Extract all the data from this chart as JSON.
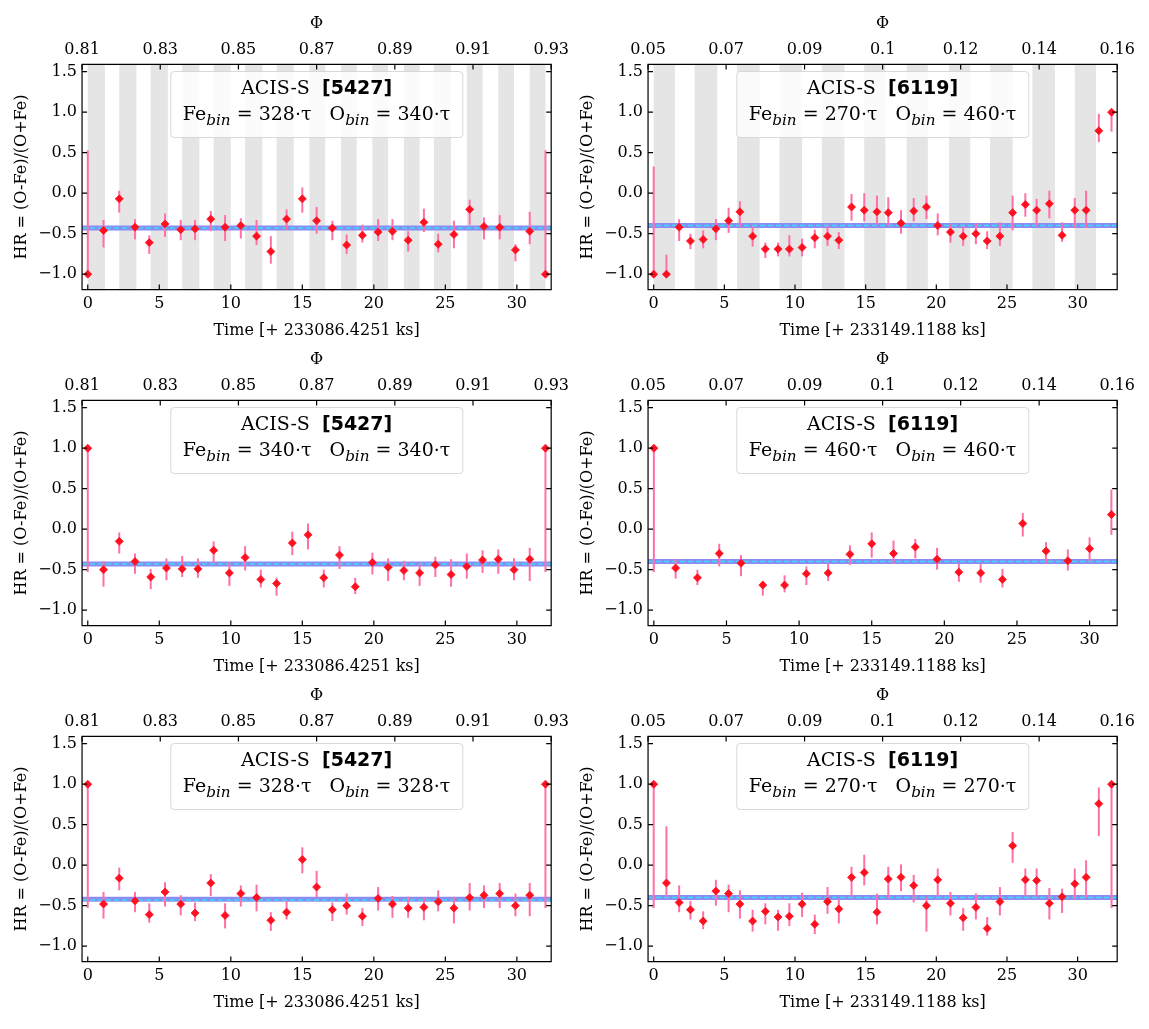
{
  "chart_data": [
    {
      "type": "scatter",
      "xlabel": "Time [+ 233086.4251 ks]",
      "ylabel": "HR = (O-Fe)/(O+Fe)",
      "x2label": "Φ",
      "marker": "diamond",
      "xlim": [
        -0.4,
        32.4
      ],
      "xticks": [
        0,
        5,
        10,
        15,
        20,
        25,
        30
      ],
      "ylim": [
        -1.19,
        1.59
      ],
      "yticks": [
        {
          "value": -1,
          "label": "−1.0"
        },
        {
          "value": -0.5,
          "label": "−0.5"
        },
        {
          "value": 0,
          "label": "0.0"
        },
        {
          "value": 0.5,
          "label": "0.5"
        },
        {
          "value": 1,
          "label": "1.0"
        },
        {
          "value": 1.5,
          "label": "1.5"
        }
      ],
      "x2lim": [
        0.81,
        0.93
      ],
      "x2ticks": [
        0.81,
        0.83,
        0.85,
        0.87,
        0.89,
        0.91,
        0.93
      ],
      "annotations": [
        "ACIS-S  [5427]",
        "Fe$_{bin}$ = 328·τ   O$_{bin}$ = 340·τ"
      ],
      "bands": [
        {
          "axis": "x",
          "from": 0,
          "to": 1.2,
          "color": "#e5e5e5"
        },
        {
          "axis": "x",
          "from": 2.2,
          "to": 3.4,
          "color": "#e5e5e5"
        },
        {
          "axis": "x",
          "from": 4.4,
          "to": 5.6,
          "color": "#e5e5e5"
        },
        {
          "axis": "x",
          "from": 6.6,
          "to": 7.8,
          "color": "#e5e5e5"
        },
        {
          "axis": "x",
          "from": 8.8,
          "to": 10,
          "color": "#e5e5e5"
        },
        {
          "axis": "x",
          "from": 11,
          "to": 12.2,
          "color": "#e5e5e5"
        },
        {
          "axis": "x",
          "from": 13.2,
          "to": 14.4,
          "color": "#e5e5e5"
        },
        {
          "axis": "x",
          "from": 15.5,
          "to": 16.6,
          "color": "#e5e5e5"
        },
        {
          "axis": "x",
          "from": 17.7,
          "to": 18.8,
          "color": "#e5e5e5"
        },
        {
          "axis": "x",
          "from": 19.9,
          "to": 21,
          "color": "#e5e5e5"
        },
        {
          "axis": "x",
          "from": 22.1,
          "to": 23.2,
          "color": "#e5e5e5"
        },
        {
          "axis": "x",
          "from": 24.2,
          "to": 25.4,
          "color": "#e5e5e5"
        },
        {
          "axis": "x",
          "from": 26.5,
          "to": 27.6,
          "color": "#e5e5e5"
        },
        {
          "axis": "x",
          "from": 28.7,
          "to": 29.8,
          "color": "#e5e5e5"
        },
        {
          "axis": "x",
          "from": 30.9,
          "to": 32,
          "color": "#e5e5e5"
        }
      ],
      "ref_lines": [
        {
          "axis": "y",
          "value": -0.43,
          "color": "#8c8cf0",
          "line_style": "solid"
        },
        {
          "axis": "y",
          "value": -0.43,
          "color": "#40d8ff",
          "line_style": "dashed"
        }
      ],
      "series": [
        {
          "color": "#ff1020",
          "x": [
            0,
            1.1,
            2.2,
            3.3,
            4.3,
            5.4,
            6.5,
            7.5,
            8.6,
            9.6,
            10.7,
            11.8,
            12.8,
            13.9,
            15,
            16,
            17.1,
            18.1,
            19.2,
            20.3,
            21.3,
            22.4,
            23.5,
            24.5,
            25.6,
            26.7,
            27.7,
            28.8,
            29.9,
            30.9,
            32
          ],
          "values": [
            -1,
            -0.46,
            -0.07,
            -0.42,
            -0.61,
            -0.38,
            -0.45,
            -0.44,
            -0.32,
            -0.42,
            -0.4,
            -0.53,
            -0.72,
            -0.32,
            -0.07,
            -0.34,
            -0.43,
            -0.64,
            -0.52,
            -0.48,
            -0.47,
            -0.58,
            -0.36,
            -0.63,
            -0.51,
            -0.2,
            -0.41,
            -0.42,
            -0.7,
            -0.47,
            -1
          ],
          "errors": [
            [
              -1,
              0.53
            ],
            [
              -0.67,
              -0.33
            ],
            [
              -0.24,
              0.03
            ],
            [
              -0.57,
              -0.32
            ],
            [
              -0.75,
              -0.52
            ],
            [
              -0.54,
              -0.25
            ],
            [
              -0.58,
              -0.33
            ],
            [
              -0.58,
              -0.33
            ],
            [
              -0.47,
              -0.22
            ],
            [
              -0.59,
              -0.27
            ],
            [
              -0.56,
              -0.31
            ],
            [
              -0.64,
              -0.33
            ],
            [
              -0.87,
              -0.53
            ],
            [
              -0.45,
              -0.2
            ],
            [
              -0.24,
              0.07
            ],
            [
              -0.5,
              -0.17
            ],
            [
              -0.58,
              -0.34
            ],
            [
              -0.75,
              -0.51
            ],
            [
              -0.61,
              -0.39
            ],
            [
              -0.59,
              -0.32
            ],
            [
              -0.58,
              -0.32
            ],
            [
              -0.72,
              -0.47
            ],
            [
              -0.48,
              -0.19
            ],
            [
              -0.73,
              -0.5
            ],
            [
              -0.68,
              -0.34
            ],
            [
              -0.39,
              -0.08
            ],
            [
              -0.57,
              -0.3
            ],
            [
              -0.57,
              -0.27
            ],
            [
              -0.84,
              -0.63
            ],
            [
              -0.63,
              -0.23
            ],
            [
              -1,
              0.53
            ]
          ]
        }
      ]
    },
    {
      "type": "scatter",
      "xlabel": "Time [+ 233149.1188 ks]",
      "ylabel": "HR = (O-Fe)/(O+Fe)",
      "x2label": "Φ",
      "marker": "diamond",
      "xlim": [
        -0.4,
        32.8
      ],
      "xticks": [
        0,
        5,
        10,
        15,
        20,
        25,
        30
      ],
      "ylim": [
        -1.19,
        1.59
      ],
      "yticks": [
        {
          "value": -1,
          "label": "−1.0"
        },
        {
          "value": -0.5,
          "label": "−0.5"
        },
        {
          "value": 0,
          "label": "0.0"
        },
        {
          "value": 0.5,
          "label": "0.5"
        },
        {
          "value": 1,
          "label": "1.0"
        },
        {
          "value": 1.5,
          "label": "1.5"
        }
      ],
      "x2lim": [
        0.05,
        0.16
      ],
      "x2ticks": [
        0.05,
        {
          "value": 0.0683,
          "label": "0.07"
        },
        {
          "value": 0.0867,
          "label": "0.09"
        },
        {
          "value": 0.105,
          "label": "0.1"
        },
        {
          "value": 0.1233,
          "label": "0.12"
        },
        {
          "value": 0.1417,
          "label": "0.14"
        },
        0.16
      ],
      "annotations": [
        "ACIS-S  [6119]",
        "Fe$_{bin}$ = 270·τ   O$_{bin}$ = 460·τ"
      ],
      "bands": [
        {
          "axis": "x",
          "from": 0,
          "to": 1.5,
          "color": "#e5e5e5"
        },
        {
          "axis": "x",
          "from": 2.9,
          "to": 4.5,
          "color": "#e5e5e5"
        },
        {
          "axis": "x",
          "from": 5.9,
          "to": 7.5,
          "color": "#e5e5e5"
        },
        {
          "axis": "x",
          "from": 8.9,
          "to": 10.5,
          "color": "#e5e5e5"
        },
        {
          "axis": "x",
          "from": 11.9,
          "to": 13.5,
          "color": "#e5e5e5"
        },
        {
          "axis": "x",
          "from": 14.9,
          "to": 16.4,
          "color": "#e5e5e5"
        },
        {
          "axis": "x",
          "from": 17.9,
          "to": 19.4,
          "color": "#e5e5e5"
        },
        {
          "axis": "x",
          "from": 20.9,
          "to": 22.4,
          "color": "#e5e5e5"
        },
        {
          "axis": "x",
          "from": 23.8,
          "to": 25.4,
          "color": "#e5e5e5"
        },
        {
          "axis": "x",
          "from": 26.8,
          "to": 28.4,
          "color": "#e5e5e5"
        },
        {
          "axis": "x",
          "from": 29.8,
          "to": 31.3,
          "color": "#e5e5e5"
        }
      ],
      "ref_lines": [
        {
          "axis": "y",
          "value": -0.4,
          "color": "#8c8cf0",
          "line_style": "solid"
        },
        {
          "axis": "y",
          "value": -0.4,
          "color": "#40d8ff",
          "line_style": "dashed"
        }
      ],
      "series": [
        {
          "color": "#ff1020",
          "x": [
            0,
            0.9,
            1.8,
            2.6,
            3.5,
            4.4,
            5.3,
            6.1,
            7,
            7.9,
            8.8,
            9.6,
            10.5,
            11.4,
            12.3,
            13.1,
            14,
            14.9,
            15.8,
            16.6,
            17.5,
            18.4,
            19.3,
            20.1,
            21,
            21.9,
            22.8,
            23.6,
            24.5,
            25.4,
            26.3,
            27.1,
            28,
            28.9,
            29.8,
            30.6,
            31.5,
            32.4
          ],
          "values": [
            -1,
            -1,
            -0.42,
            -0.59,
            -0.57,
            -0.44,
            -0.34,
            -0.23,
            -0.53,
            -0.69,
            -0.69,
            -0.69,
            -0.67,
            -0.55,
            -0.53,
            -0.58,
            -0.17,
            -0.21,
            -0.23,
            -0.24,
            -0.37,
            -0.22,
            -0.17,
            -0.4,
            -0.48,
            -0.53,
            -0.5,
            -0.59,
            -0.53,
            -0.24,
            -0.14,
            -0.21,
            -0.13,
            -0.52,
            -0.21,
            -0.21,
            0.77,
            1
          ],
          "errors": [
            [
              -1,
              0.33
            ],
            [
              -1,
              -0.76
            ],
            [
              -0.59,
              -0.32
            ],
            [
              -0.69,
              -0.5
            ],
            [
              -0.68,
              -0.46
            ],
            [
              -0.58,
              -0.32
            ],
            [
              -0.49,
              -0.18
            ],
            [
              -0.42,
              -0.1
            ],
            [
              -0.66,
              -0.41
            ],
            [
              -0.8,
              -0.61
            ],
            [
              -0.78,
              -0.61
            ],
            [
              -0.78,
              -0.52
            ],
            [
              -0.78,
              -0.56
            ],
            [
              -0.68,
              -0.45
            ],
            [
              -0.65,
              -0.4
            ],
            [
              -0.69,
              -0.48
            ],
            [
              -0.34,
              -0.01
            ],
            [
              -0.35,
              0
            ],
            [
              -0.39,
              -0.03
            ],
            [
              -0.4,
              -0.05
            ],
            [
              -0.5,
              -0.21
            ],
            [
              -0.35,
              -0.06
            ],
            [
              -0.32,
              -0.03
            ],
            [
              -0.52,
              -0.25
            ],
            [
              -0.61,
              -0.38
            ],
            [
              -0.65,
              -0.41
            ],
            [
              -0.63,
              -0.37
            ],
            [
              -0.69,
              -0.47
            ],
            [
              -0.65,
              -0.36
            ],
            [
              -0.46,
              -0.03
            ],
            [
              -0.29,
              0
            ],
            [
              -0.4,
              -0.07
            ],
            [
              -0.31,
              0.03
            ],
            [
              -0.6,
              -0.36
            ],
            [
              -0.43,
              -0.06
            ],
            [
              -0.43,
              0.03
            ],
            [
              0.63,
              0.98
            ],
            [
              0.76,
              1.04
            ]
          ]
        }
      ]
    },
    {
      "type": "scatter",
      "xlabel": "Time [+ 233086.4251 ks]",
      "ylabel": "HR = (O-Fe)/(O+Fe)",
      "x2label": "Φ",
      "marker": "diamond",
      "xlim": [
        -0.4,
        32.4
      ],
      "xticks": [
        0,
        5,
        10,
        15,
        20,
        25,
        30
      ],
      "ylim": [
        -1.19,
        1.59
      ],
      "yticks": [
        {
          "value": -1,
          "label": "−1.0"
        },
        {
          "value": -0.5,
          "label": "−0.5"
        },
        {
          "value": 0,
          "label": "0.0"
        },
        {
          "value": 0.5,
          "label": "0.5"
        },
        {
          "value": 1,
          "label": "1.0"
        },
        {
          "value": 1.5,
          "label": "1.5"
        }
      ],
      "x2lim": [
        0.81,
        0.93
      ],
      "x2ticks": [
        0.81,
        0.83,
        0.85,
        0.87,
        0.89,
        0.91,
        0.93
      ],
      "annotations": [
        "ACIS-S  [5427]",
        "Fe$_{bin}$ = 340·τ   O$_{bin}$ = 340·τ"
      ],
      "ref_lines": [
        {
          "axis": "y",
          "value": -0.43,
          "color": "#8c8cf0",
          "line_style": "solid"
        },
        {
          "axis": "y",
          "value": -0.43,
          "color": "#40d8ff",
          "line_style": "dashed"
        }
      ],
      "series": [
        {
          "color": "#ff1020",
          "x": [
            0,
            1.1,
            2.2,
            3.3,
            4.4,
            5.5,
            6.6,
            7.7,
            8.8,
            9.9,
            11,
            12.1,
            13.2,
            14.3,
            15.4,
            16.5,
            17.6,
            18.7,
            19.9,
            21,
            22.1,
            23.2,
            24.3,
            25.4,
            26.5,
            27.6,
            28.7,
            29.8,
            30.9,
            32
          ],
          "values": [
            1,
            -0.5,
            -0.15,
            -0.4,
            -0.59,
            -0.48,
            -0.49,
            -0.49,
            -0.26,
            -0.54,
            -0.35,
            -0.62,
            -0.67,
            -0.17,
            -0.07,
            -0.6,
            -0.32,
            -0.71,
            -0.41,
            -0.47,
            -0.51,
            -0.54,
            -0.44,
            -0.56,
            -0.46,
            -0.38,
            -0.37,
            -0.5,
            -0.37,
            1
          ],
          "errors": [
            [
              -0.53,
              1
            ],
            [
              -0.71,
              -0.4
            ],
            [
              -0.3,
              -0.04
            ],
            [
              -0.55,
              -0.3
            ],
            [
              -0.74,
              -0.49
            ],
            [
              -0.63,
              -0.36
            ],
            [
              -0.59,
              -0.33
            ],
            [
              -0.6,
              -0.36
            ],
            [
              -0.42,
              -0.15
            ],
            [
              -0.7,
              -0.41
            ],
            [
              -0.51,
              -0.21
            ],
            [
              -0.72,
              -0.5
            ],
            [
              -0.82,
              -0.6
            ],
            [
              -0.32,
              -0.03
            ],
            [
              -0.25,
              0.07
            ],
            [
              -0.72,
              -0.5
            ],
            [
              -0.49,
              -0.21
            ],
            [
              -0.8,
              -0.6
            ],
            [
              -0.56,
              -0.29
            ],
            [
              -0.64,
              -0.36
            ],
            [
              -0.63,
              -0.39
            ],
            [
              -0.7,
              -0.42
            ],
            [
              -0.59,
              -0.34
            ],
            [
              -0.71,
              -0.37
            ],
            [
              -0.61,
              -0.3
            ],
            [
              -0.54,
              -0.26
            ],
            [
              -0.55,
              -0.25
            ],
            [
              -0.63,
              -0.36
            ],
            [
              -0.64,
              -0.23
            ],
            [
              -0.53,
              1
            ]
          ]
        }
      ]
    },
    {
      "type": "scatter",
      "xlabel": "Time [+ 233149.1188 ks]",
      "ylabel": "HR = (O-Fe)/(O+Fe)",
      "x2label": "Φ",
      "marker": "diamond",
      "xlim": [
        -0.4,
        31.9
      ],
      "xticks": [
        0,
        5,
        10,
        15,
        20,
        25,
        30
      ],
      "ylim": [
        -1.19,
        1.59
      ],
      "yticks": [
        {
          "value": -1,
          "label": "−1.0"
        },
        {
          "value": -0.5,
          "label": "−0.5"
        },
        {
          "value": 0,
          "label": "0.0"
        },
        {
          "value": 0.5,
          "label": "0.5"
        },
        {
          "value": 1,
          "label": "1.0"
        },
        {
          "value": 1.5,
          "label": "1.5"
        }
      ],
      "x2lim": [
        0.05,
        0.16
      ],
      "x2ticks": [
        0.05,
        {
          "value": 0.0683,
          "label": "0.07"
        },
        {
          "value": 0.0867,
          "label": "0.09"
        },
        {
          "value": 0.105,
          "label": "0.1"
        },
        {
          "value": 0.1233,
          "label": "0.12"
        },
        {
          "value": 0.1417,
          "label": "0.14"
        },
        0.16
      ],
      "annotations": [
        "ACIS-S  [6119]",
        "Fe$_{bin}$ = 460·τ   O$_{bin}$ = 460·τ"
      ],
      "ref_lines": [
        {
          "axis": "y",
          "value": -0.4,
          "color": "#8c8cf0",
          "line_style": "solid"
        },
        {
          "axis": "y",
          "value": -0.4,
          "color": "#40d8ff",
          "line_style": "dashed"
        }
      ],
      "series": [
        {
          "color": "#ff1020",
          "x": [
            0,
            1.5,
            3,
            4.5,
            6,
            7.5,
            9,
            10.5,
            12,
            13.5,
            15,
            16.5,
            18,
            19.5,
            21,
            22.5,
            24,
            25.4,
            27,
            28.5,
            30,
            31.5
          ],
          "values": [
            1,
            -0.48,
            -0.6,
            -0.3,
            -0.42,
            -0.69,
            -0.69,
            -0.55,
            -0.54,
            -0.31,
            -0.18,
            -0.3,
            -0.22,
            -0.37,
            -0.53,
            -0.54,
            -0.62,
            0.07,
            -0.27,
            -0.39,
            -0.24,
            0.18
          ],
          "errors": [
            [
              -0.53,
              1
            ],
            [
              -0.61,
              -0.37
            ],
            [
              -0.69,
              -0.5
            ],
            [
              -0.46,
              -0.18
            ],
            [
              -0.58,
              -0.32
            ],
            [
              -0.82,
              -0.64
            ],
            [
              -0.78,
              -0.57
            ],
            [
              -0.69,
              -0.46
            ],
            [
              -0.64,
              -0.42
            ],
            [
              -0.44,
              -0.2
            ],
            [
              -0.35,
              -0.04
            ],
            [
              -0.43,
              -0.14
            ],
            [
              -0.36,
              -0.12
            ],
            [
              -0.5,
              -0.23
            ],
            [
              -0.65,
              -0.43
            ],
            [
              -0.66,
              -0.43
            ],
            [
              -0.72,
              -0.49
            ],
            [
              -0.09,
              0.2
            ],
            [
              -0.42,
              -0.16
            ],
            [
              -0.51,
              -0.25
            ],
            [
              -0.4,
              -0.1
            ],
            [
              -0.07,
              0.49
            ]
          ]
        }
      ]
    },
    {
      "type": "scatter",
      "xlabel": "Time [+ 233086.4251 ks]",
      "ylabel": "HR = (O-Fe)/(O+Fe)",
      "x2label": "Φ",
      "marker": "diamond",
      "xlim": [
        -0.4,
        32.4
      ],
      "xticks": [
        0,
        5,
        10,
        15,
        20,
        25,
        30
      ],
      "ylim": [
        -1.19,
        1.59
      ],
      "yticks": [
        {
          "value": -1,
          "label": "−1.0"
        },
        {
          "value": -0.5,
          "label": "−0.5"
        },
        {
          "value": 0,
          "label": "0.0"
        },
        {
          "value": 0.5,
          "label": "0.5"
        },
        {
          "value": 1,
          "label": "1.0"
        },
        {
          "value": 1.5,
          "label": "1.5"
        }
      ],
      "x2lim": [
        0.81,
        0.93
      ],
      "x2ticks": [
        0.81,
        0.83,
        0.85,
        0.87,
        0.89,
        0.91,
        0.93
      ],
      "annotations": [
        "ACIS-S  [5427]",
        "Fe$_{bin}$ = 328·τ   O$_{bin}$ = 328·τ"
      ],
      "ref_lines": [
        {
          "axis": "y",
          "value": -0.42,
          "color": "#8c8cf0",
          "line_style": "solid"
        },
        {
          "axis": "y",
          "value": -0.43,
          "color": "#40d8ff",
          "line_style": "dashed"
        }
      ],
      "series": [
        {
          "color": "#ff1020",
          "x": [
            0,
            1.1,
            2.2,
            3.3,
            4.3,
            5.4,
            6.5,
            7.5,
            8.6,
            9.6,
            10.7,
            11.8,
            12.8,
            13.9,
            15,
            16,
            17.1,
            18.1,
            19.2,
            20.3,
            21.3,
            22.4,
            23.5,
            24.5,
            25.6,
            26.7,
            27.7,
            28.8,
            29.9,
            30.9,
            32
          ],
          "values": [
            1,
            -0.48,
            -0.16,
            -0.44,
            -0.61,
            -0.33,
            -0.48,
            -0.59,
            -0.22,
            -0.62,
            -0.35,
            -0.4,
            -0.68,
            -0.58,
            0.07,
            -0.27,
            -0.55,
            -0.5,
            -0.63,
            -0.41,
            -0.48,
            -0.53,
            -0.52,
            -0.45,
            -0.53,
            -0.4,
            -0.37,
            -0.35,
            -0.5,
            -0.37,
            1
          ],
          "errors": [
            [
              -0.53,
              1
            ],
            [
              -0.66,
              -0.33
            ],
            [
              -0.31,
              -0.03
            ],
            [
              -0.58,
              -0.33
            ],
            [
              -0.71,
              -0.47
            ],
            [
              -0.51,
              -0.21
            ],
            [
              -0.62,
              -0.37
            ],
            [
              -0.69,
              -0.46
            ],
            [
              -0.38,
              -0.11
            ],
            [
              -0.78,
              -0.47
            ],
            [
              -0.51,
              -0.25
            ],
            [
              -0.57,
              -0.24
            ],
            [
              -0.81,
              -0.58
            ],
            [
              -0.67,
              -0.44
            ],
            [
              -0.1,
              0.22
            ],
            [
              -0.4,
              -0.07
            ],
            [
              -0.69,
              -0.46
            ],
            [
              -0.61,
              -0.35
            ],
            [
              -0.75,
              -0.53
            ],
            [
              -0.56,
              -0.27
            ],
            [
              -0.65,
              -0.38
            ],
            [
              -0.65,
              -0.39
            ],
            [
              -0.68,
              -0.4
            ],
            [
              -0.57,
              -0.31
            ],
            [
              -0.72,
              -0.39
            ],
            [
              -0.56,
              -0.22
            ],
            [
              -0.53,
              -0.25
            ],
            [
              -0.53,
              -0.22
            ],
            [
              -0.63,
              -0.35
            ],
            [
              -0.63,
              -0.22
            ],
            [
              -0.53,
              1
            ]
          ]
        }
      ]
    },
    {
      "type": "scatter",
      "xlabel": "Time [+ 233149.1188 ks]",
      "ylabel": "HR = (O-Fe)/(O+Fe)",
      "x2label": "Φ",
      "marker": "diamond",
      "xlim": [
        -0.4,
        32.8
      ],
      "xticks": [
        0,
        5,
        10,
        15,
        20,
        25,
        30
      ],
      "ylim": [
        -1.19,
        1.59
      ],
      "yticks": [
        {
          "value": -1,
          "label": "−1.0"
        },
        {
          "value": -0.5,
          "label": "−0.5"
        },
        {
          "value": 0,
          "label": "0.0"
        },
        {
          "value": 0.5,
          "label": "0.5"
        },
        {
          "value": 1,
          "label": "1.0"
        },
        {
          "value": 1.5,
          "label": "1.5"
        }
      ],
      "x2lim": [
        0.05,
        0.16
      ],
      "x2ticks": [
        0.05,
        {
          "value": 0.0683,
          "label": "0.07"
        },
        {
          "value": 0.0867,
          "label": "0.09"
        },
        {
          "value": 0.105,
          "label": "0.1"
        },
        {
          "value": 0.1233,
          "label": "0.12"
        },
        {
          "value": 0.1417,
          "label": "0.14"
        },
        0.16
      ],
      "annotations": [
        "ACIS-S  [6119]",
        "Fe$_{bin}$ = 270·τ   O$_{bin}$ = 270·τ"
      ],
      "ref_lines": [
        {
          "axis": "y",
          "value": -0.4,
          "color": "#8c8cf0",
          "line_style": "solid"
        },
        {
          "axis": "y",
          "value": -0.4,
          "color": "#40d8ff",
          "line_style": "dashed"
        }
      ],
      "series": [
        {
          "color": "#ff1020",
          "x": [
            0,
            0.9,
            1.8,
            2.6,
            3.5,
            4.4,
            5.3,
            6.1,
            7,
            7.9,
            8.8,
            9.6,
            10.5,
            11.4,
            12.3,
            13.1,
            14,
            14.9,
            15.8,
            16.6,
            17.5,
            18.4,
            19.3,
            20.1,
            21,
            21.9,
            22.8,
            23.6,
            24.5,
            25.4,
            26.3,
            27.1,
            28,
            28.9,
            29.8,
            30.6,
            31.5,
            32.4
          ],
          "values": [
            1,
            -0.22,
            -0.46,
            -0.55,
            -0.69,
            -0.32,
            -0.35,
            -0.48,
            -0.69,
            -0.57,
            -0.64,
            -0.63,
            -0.48,
            -0.73,
            -0.45,
            -0.54,
            -0.15,
            -0.09,
            -0.58,
            -0.17,
            -0.15,
            -0.25,
            -0.5,
            -0.18,
            -0.47,
            -0.65,
            -0.52,
            -0.78,
            -0.45,
            0.24,
            -0.18,
            -0.19,
            -0.47,
            -0.39,
            -0.23,
            -0.15,
            0.76,
            1
          ],
          "errors": [
            [
              -0.53,
              1
            ],
            [
              -0.39,
              0.48
            ],
            [
              -0.58,
              -0.25
            ],
            [
              -0.67,
              -0.44
            ],
            [
              -0.79,
              -0.57
            ],
            [
              -0.5,
              -0.18
            ],
            [
              -0.58,
              -0.24
            ],
            [
              -0.66,
              -0.31
            ],
            [
              -0.82,
              -0.55
            ],
            [
              -0.73,
              -0.47
            ],
            [
              -0.81,
              -0.55
            ],
            [
              -0.75,
              -0.47
            ],
            [
              -0.64,
              -0.34
            ],
            [
              -0.85,
              -0.61
            ],
            [
              -0.6,
              -0.27
            ],
            [
              -0.72,
              -0.42
            ],
            [
              -0.39,
              -0.02
            ],
            [
              -0.25,
              0.13
            ],
            [
              -0.73,
              -0.35
            ],
            [
              -0.41,
              -0.02
            ],
            [
              -0.32,
              0.01
            ],
            [
              -0.46,
              -0.12
            ],
            [
              -0.82,
              -0.39
            ],
            [
              -0.38,
              -0.04
            ],
            [
              -0.62,
              -0.33
            ],
            [
              -0.81,
              -0.53
            ],
            [
              -0.67,
              -0.35
            ],
            [
              -0.87,
              -0.64
            ],
            [
              -0.62,
              -0.27
            ],
            [
              0.03,
              0.41
            ],
            [
              -0.38,
              -0.04
            ],
            [
              -0.39,
              -0.04
            ],
            [
              -0.67,
              -0.28
            ],
            [
              -0.59,
              -0.29
            ],
            [
              -0.42,
              -0.04
            ],
            [
              -0.4,
              0.06
            ],
            [
              0.36,
              0.96
            ],
            [
              -0.53,
              1
            ]
          ]
        }
      ]
    }
  ]
}
